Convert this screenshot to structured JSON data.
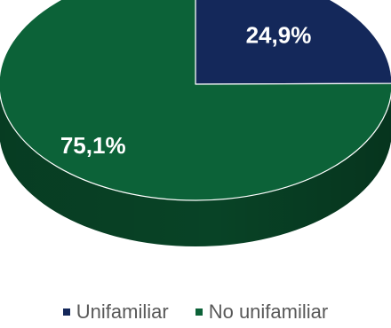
{
  "chart_data": {
    "type": "pie",
    "title": "",
    "three_d": true,
    "start_angle_clockwise_from_top_deg": 0,
    "legend_position": "bottom",
    "series": [
      {
        "name": "Unifamiliar",
        "value": 24.9,
        "label": "24,9%",
        "color": "#14285a",
        "side_color": "#0c1a3e"
      },
      {
        "name": "No unifamiliar",
        "value": 75.1,
        "label": "75,1%",
        "color": "#0c6238",
        "side_color": "#084326"
      }
    ]
  }
}
